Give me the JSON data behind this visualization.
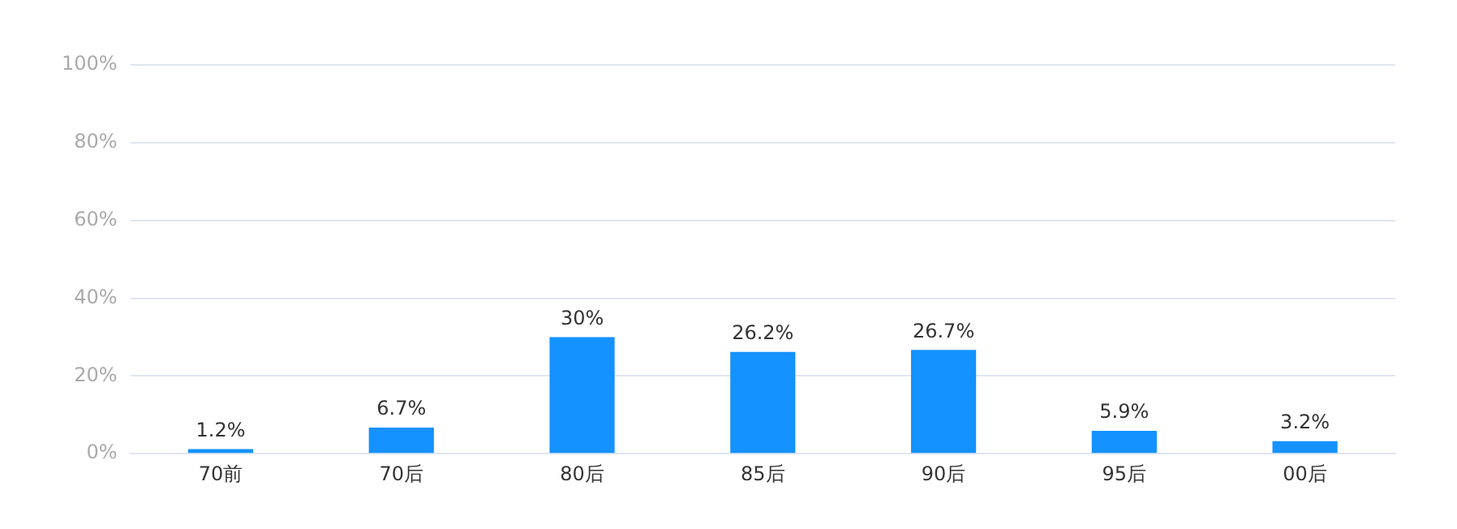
{
  "chart_data": {
    "type": "bar",
    "categories": [
      "70前",
      "70后",
      "80后",
      "85后",
      "90后",
      "95后",
      "00后"
    ],
    "values": [
      1.2,
      6.7,
      30,
      26.2,
      26.7,
      5.9,
      3.2
    ],
    "value_labels": [
      "1.2%",
      "6.7%",
      "30%",
      "26.2%",
      "26.7%",
      "5.9%",
      "3.2%"
    ],
    "color": "#1492ff",
    "ylim": [
      0,
      100
    ],
    "yticks": [
      {
        "value": 0,
        "label": "0%"
      },
      {
        "value": 20,
        "label": "20%"
      },
      {
        "value": 40,
        "label": "40%"
      },
      {
        "value": 60,
        "label": "60%"
      },
      {
        "value": 80,
        "label": "80%"
      },
      {
        "value": 100,
        "label": "100%"
      }
    ],
    "grid": "y"
  }
}
